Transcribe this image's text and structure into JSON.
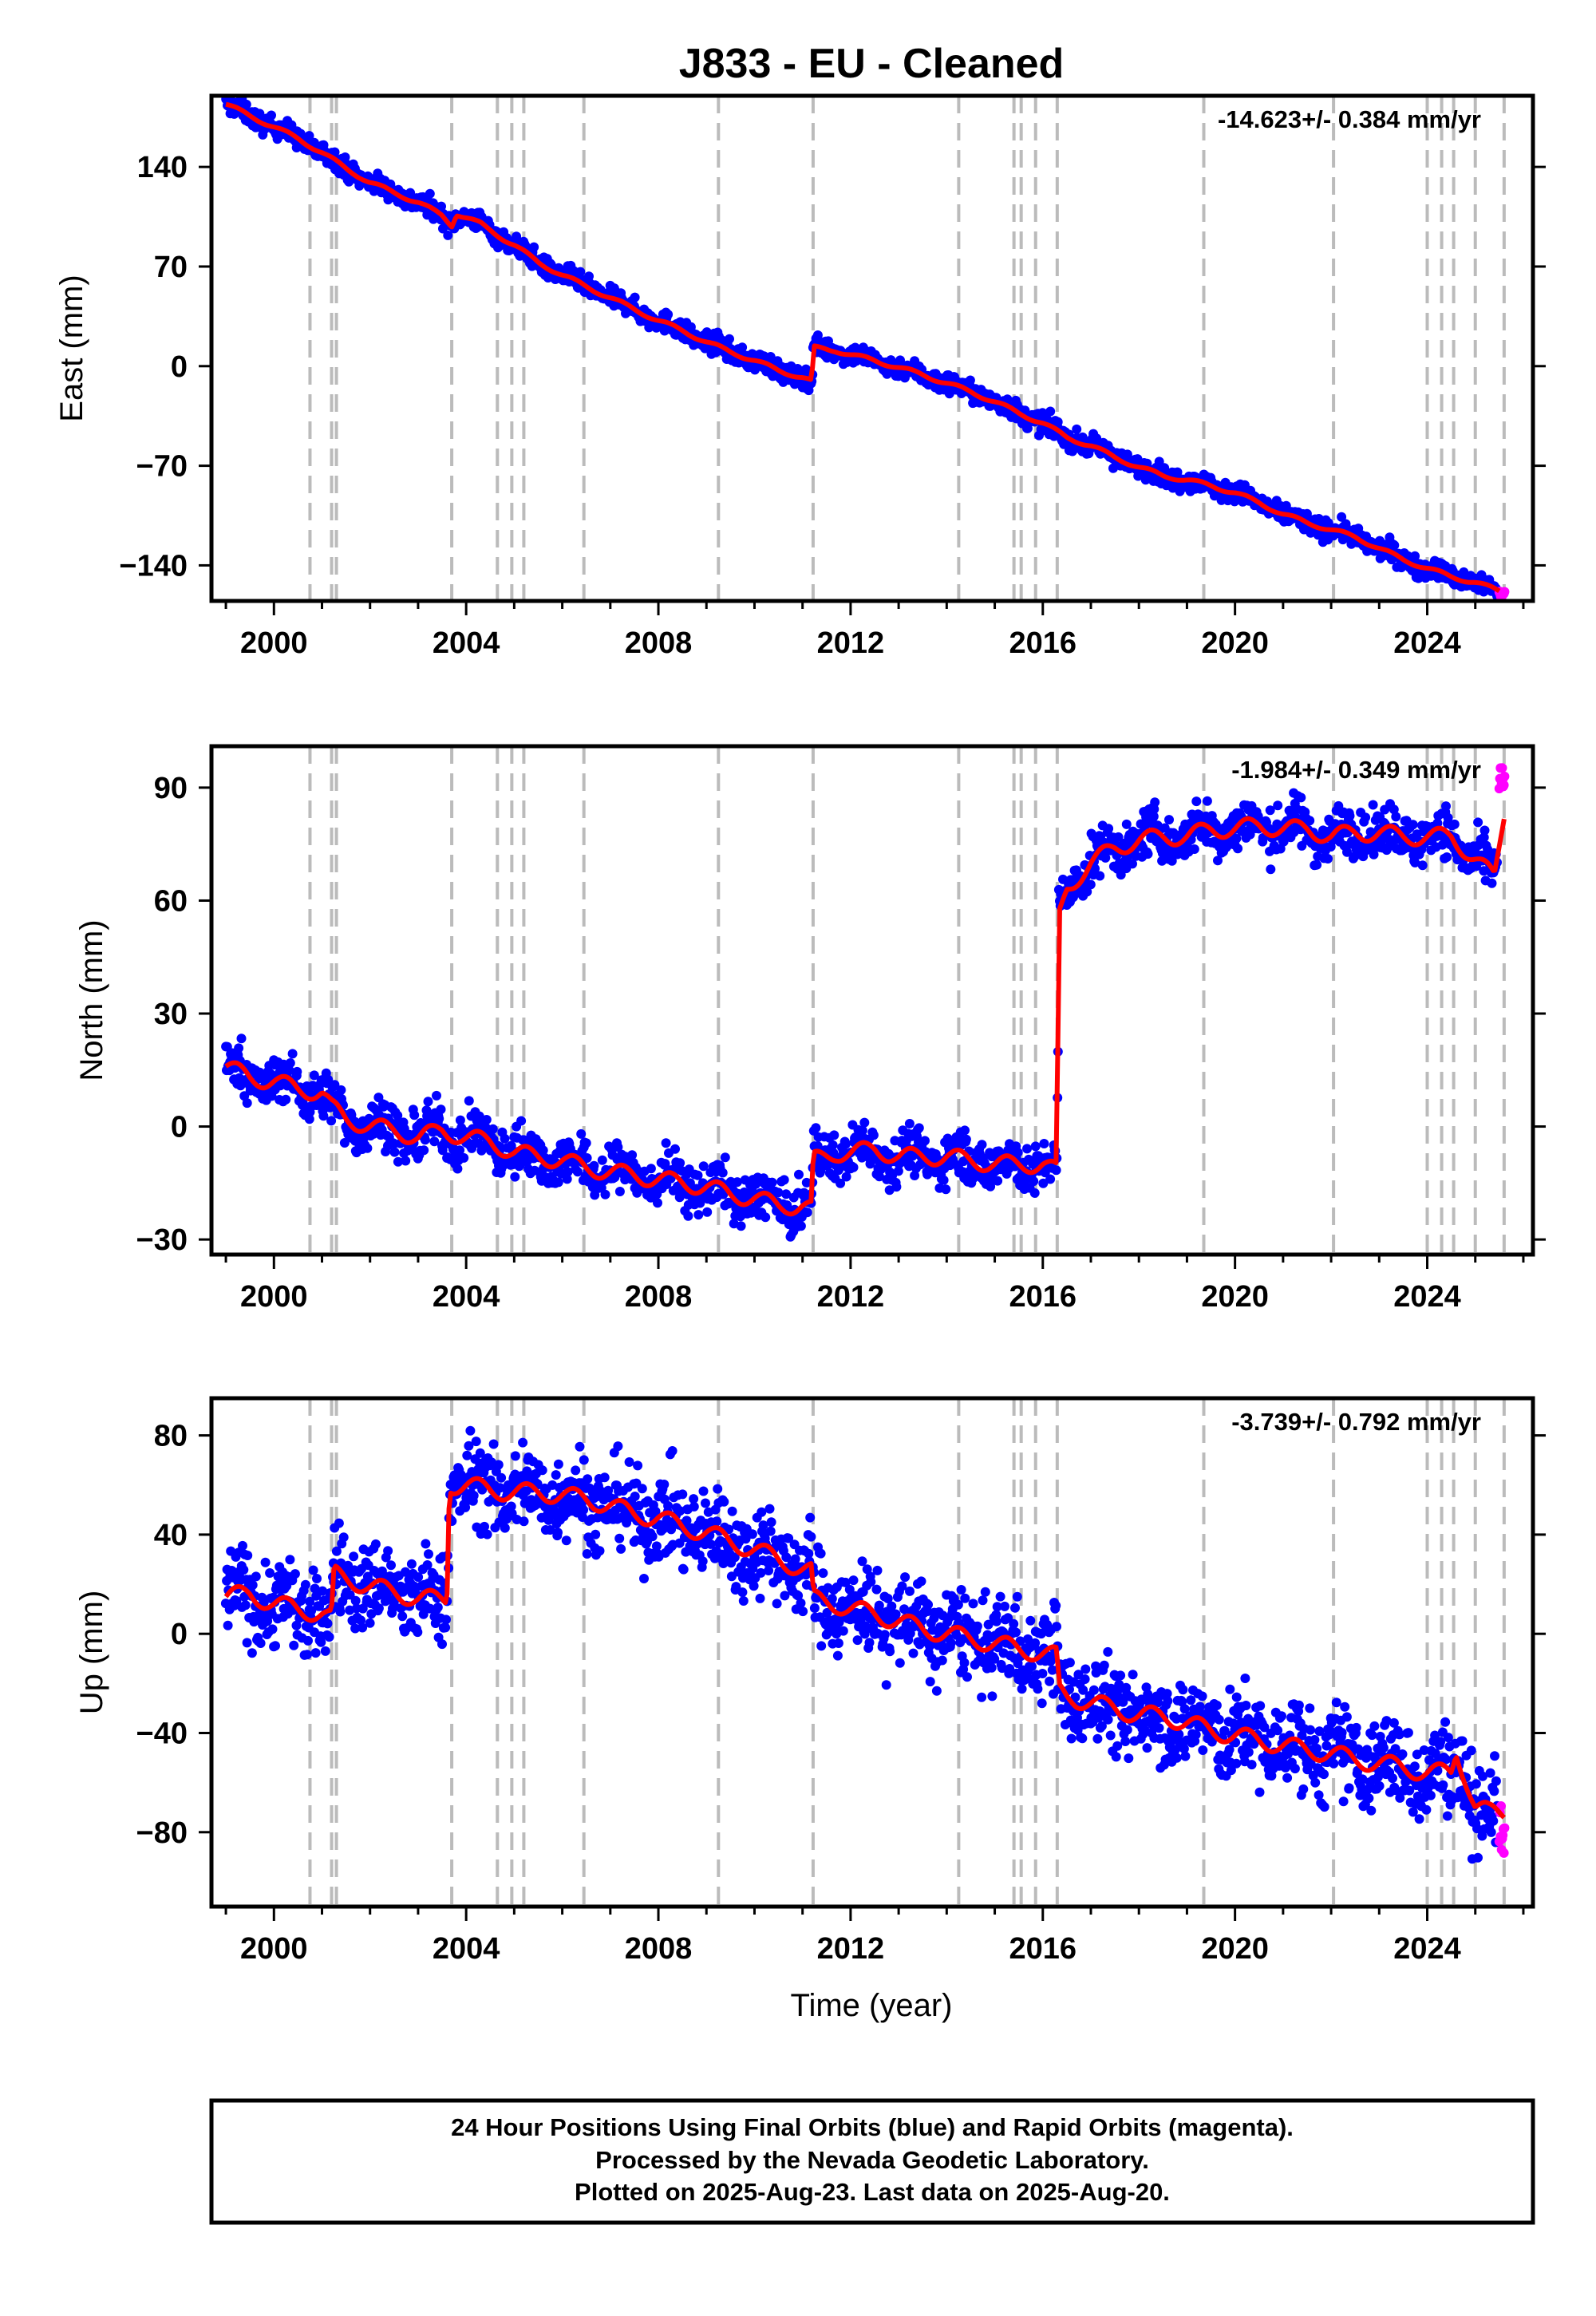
{
  "title": "J833  - EU - Cleaned",
  "x_axis_label": "Time (year)",
  "footer": [
    "24 Hour Positions Using Final Orbits (blue) and Rapid Orbits (magenta).",
    "Processed by the Nevada Geodetic Laboratory.",
    "Plotted on 2025-Aug-23. Last data on 2025-Aug-20."
  ],
  "colors": {
    "final_orbit_points": "#0000ff",
    "rapid_orbit_points": "#ff00ff",
    "model_fit": "#ff0000",
    "event_lines": "#bbbbbb"
  },
  "chart_data": [
    {
      "type": "scatter",
      "name": "East",
      "ylabel": "East (mm)",
      "rate_text": "-14.623+/- 0.384 mm/yr",
      "xlim": [
        1998.7,
        2026.2
      ],
      "ylim": [
        -165,
        190
      ],
      "xticks": [
        2000,
        2004,
        2008,
        2012,
        2016,
        2020,
        2024
      ],
      "yticks": [
        140,
        70,
        0,
        -70,
        -140
      ],
      "ytick_labels": [
        "140",
        "70",
        "0",
        "−70",
        "−140"
      ],
      "series": [
        {
          "points": [
            [
              1999.0,
              184
            ],
            [
              1999.5,
              176
            ],
            [
              2000.0,
              168
            ],
            [
              2000.5,
              160
            ],
            [
              2001.0,
              150
            ],
            [
              2001.5,
              139
            ],
            [
              2002.0,
              129
            ],
            [
              2002.5,
              122
            ],
            [
              2003.0,
              115
            ],
            [
              2003.5,
              106
            ],
            [
              2003.7,
              99
            ],
            [
              2003.8,
              107
            ],
            [
              2004.3,
              100
            ],
            [
              2004.8,
              89
            ],
            [
              2005.0,
              85
            ],
            [
              2005.5,
              73
            ],
            [
              2006.0,
              64
            ],
            [
              2006.5,
              56
            ],
            [
              2007.0,
              48
            ],
            [
              2007.5,
              40
            ],
            [
              2008.0,
              32
            ],
            [
              2008.5,
              25
            ],
            [
              2009.0,
              17
            ],
            [
              2009.5,
              10
            ],
            [
              2010.0,
              4
            ],
            [
              2010.5,
              -3
            ],
            [
              2011.0,
              -8
            ],
            [
              2011.2,
              -11
            ],
            [
              2011.22,
              13
            ],
            [
              2011.7,
              11
            ],
            [
              2012.0,
              8
            ],
            [
              2012.5,
              4
            ],
            [
              2013.0,
              -1
            ],
            [
              2013.5,
              -6
            ],
            [
              2014.0,
              -12
            ],
            [
              2014.5,
              -18
            ],
            [
              2015.0,
              -25
            ],
            [
              2015.5,
              -33
            ],
            [
              2016.0,
              -40
            ],
            [
              2016.5,
              -50
            ],
            [
              2017.0,
              -56
            ],
            [
              2017.5,
              -64
            ],
            [
              2018.0,
              -71
            ],
            [
              2018.5,
              -77
            ],
            [
              2019.0,
              -80
            ],
            [
              2019.5,
              -84
            ],
            [
              2020.0,
              -89
            ],
            [
              2020.5,
              -96
            ],
            [
              2021.0,
              -104
            ],
            [
              2021.5,
              -110
            ],
            [
              2022.0,
              -115
            ],
            [
              2022.5,
              -120
            ],
            [
              2023.0,
              -128
            ],
            [
              2023.5,
              -136
            ],
            [
              2024.0,
              -142
            ],
            [
              2024.5,
              -148
            ],
            [
              2025.0,
              -152
            ],
            [
              2025.5,
              -158
            ]
          ]
        }
      ]
    },
    {
      "type": "scatter",
      "name": "North",
      "ylabel": "North (mm)",
      "rate_text": "-1.984+/- 0.349 mm/yr",
      "xlim": [
        1998.7,
        2026.2
      ],
      "ylim": [
        -34,
        101
      ],
      "xticks": [
        2000,
        2004,
        2008,
        2012,
        2016,
        2020,
        2024
      ],
      "yticks": [
        90,
        60,
        30,
        0,
        -30
      ],
      "ytick_labels": [
        "90",
        "60",
        "30",
        "0",
        "−30"
      ],
      "series": [
        {
          "points": [
            [
              1999.0,
              16
            ],
            [
              1999.5,
              13
            ],
            [
              2000.0,
              12
            ],
            [
              2000.5,
              10
            ],
            [
              2001.0,
              9
            ],
            [
              2001.2,
              5
            ],
            [
              2001.5,
              2
            ],
            [
              2002.0,
              0
            ],
            [
              2002.5,
              -1
            ],
            [
              2003.0,
              -3
            ],
            [
              2003.5,
              -1
            ],
            [
              2004.0,
              -3
            ],
            [
              2004.5,
              -4
            ],
            [
              2005.0,
              -7
            ],
            [
              2005.5,
              -8
            ],
            [
              2006.0,
              -9
            ],
            [
              2006.5,
              -11
            ],
            [
              2007.0,
              -12
            ],
            [
              2007.5,
              -13
            ],
            [
              2008.0,
              -14
            ],
            [
              2008.5,
              -15
            ],
            [
              2009.0,
              -16
            ],
            [
              2009.5,
              -18
            ],
            [
              2010.0,
              -19
            ],
            [
              2010.5,
              -21
            ],
            [
              2011.0,
              -21
            ],
            [
              2011.2,
              -22
            ],
            [
              2011.22,
              -9
            ],
            [
              2011.7,
              -7
            ],
            [
              2012.0,
              -7
            ],
            [
              2012.5,
              -6
            ],
            [
              2013.0,
              -8
            ],
            [
              2013.5,
              -8
            ],
            [
              2014.0,
              -8
            ],
            [
              2014.5,
              -9
            ],
            [
              2015.0,
              -10
            ],
            [
              2015.5,
              -10
            ],
            [
              2016.0,
              -10
            ],
            [
              2016.3,
              -12
            ],
            [
              2016.33,
              55
            ],
            [
              2016.5,
              63
            ],
            [
              2017.0,
              70
            ],
            [
              2017.5,
              74
            ],
            [
              2018.0,
              76
            ],
            [
              2018.5,
              77
            ],
            [
              2019.0,
              77
            ],
            [
              2019.5,
              79
            ],
            [
              2020.0,
              79
            ],
            [
              2020.5,
              80
            ],
            [
              2021.0,
              79
            ],
            [
              2021.5,
              79
            ],
            [
              2022.0,
              77
            ],
            [
              2022.5,
              78
            ],
            [
              2023.0,
              78
            ],
            [
              2023.5,
              77
            ],
            [
              2024.0,
              77
            ],
            [
              2024.5,
              77
            ],
            [
              2025.0,
              71
            ],
            [
              2025.4,
              66
            ],
            [
              2025.6,
              83
            ]
          ]
        }
      ]
    },
    {
      "type": "scatter",
      "name": "Up",
      "ylabel": "Up (mm)",
      "rate_text": "-3.739+/- 0.792 mm/yr",
      "xlim": [
        1998.7,
        2026.2
      ],
      "ylim": [
        -110,
        95
      ],
      "xticks": [
        2000,
        2004,
        2008,
        2012,
        2016,
        2020,
        2024
      ],
      "yticks": [
        80,
        40,
        0,
        -40,
        -80
      ],
      "ytick_labels": [
        "80",
        "40",
        "0",
        "−40",
        "−80"
      ],
      "series": [
        {
          "points": [
            [
              1999.0,
              15
            ],
            [
              1999.5,
              16
            ],
            [
              2000.0,
              12
            ],
            [
              2000.5,
              10
            ],
            [
              2001.0,
              8
            ],
            [
              2001.2,
              6
            ],
            [
              2001.25,
              24
            ],
            [
              2001.7,
              21
            ],
            [
              2002.0,
              19
            ],
            [
              2002.5,
              17
            ],
            [
              2003.0,
              14
            ],
            [
              2003.6,
              14
            ],
            [
              2003.65,
              60
            ],
            [
              2004.0,
              60
            ],
            [
              2004.5,
              58
            ],
            [
              2005.0,
              57
            ],
            [
              2005.5,
              57
            ],
            [
              2006.0,
              56
            ],
            [
              2006.5,
              54
            ],
            [
              2007.0,
              52
            ],
            [
              2007.5,
              48
            ],
            [
              2008.0,
              47
            ],
            [
              2008.5,
              43
            ],
            [
              2009.0,
              41
            ],
            [
              2009.5,
              37
            ],
            [
              2010.0,
              34
            ],
            [
              2010.5,
              30
            ],
            [
              2011.0,
              26
            ],
            [
              2011.2,
              25
            ],
            [
              2011.22,
              14
            ],
            [
              2011.7,
              12
            ],
            [
              2012.0,
              10
            ],
            [
              2012.5,
              8
            ],
            [
              2013.0,
              5
            ],
            [
              2013.5,
              2
            ],
            [
              2014.0,
              0
            ],
            [
              2014.5,
              -2
            ],
            [
              2015.0,
              -4
            ],
            [
              2015.5,
              -6
            ],
            [
              2016.0,
              -8
            ],
            [
              2016.3,
              -9
            ],
            [
              2016.33,
              -23
            ],
            [
              2016.5,
              -25
            ],
            [
              2017.0,
              -28
            ],
            [
              2017.5,
              -30
            ],
            [
              2018.0,
              -33
            ],
            [
              2018.5,
              -33
            ],
            [
              2019.0,
              -36
            ],
            [
              2019.5,
              -39
            ],
            [
              2020.0,
              -41
            ],
            [
              2020.5,
              -43
            ],
            [
              2021.0,
              -45
            ],
            [
              2021.5,
              -47
            ],
            [
              2022.0,
              -48
            ],
            [
              2022.5,
              -51
            ],
            [
              2023.0,
              -52
            ],
            [
              2023.5,
              -54
            ],
            [
              2024.0,
              -56
            ],
            [
              2024.5,
              -56
            ],
            [
              2024.6,
              -47
            ],
            [
              2024.8,
              -58
            ],
            [
              2025.0,
              -70
            ],
            [
              2025.3,
              -72
            ],
            [
              2025.6,
              -72
            ]
          ]
        }
      ]
    }
  ]
}
